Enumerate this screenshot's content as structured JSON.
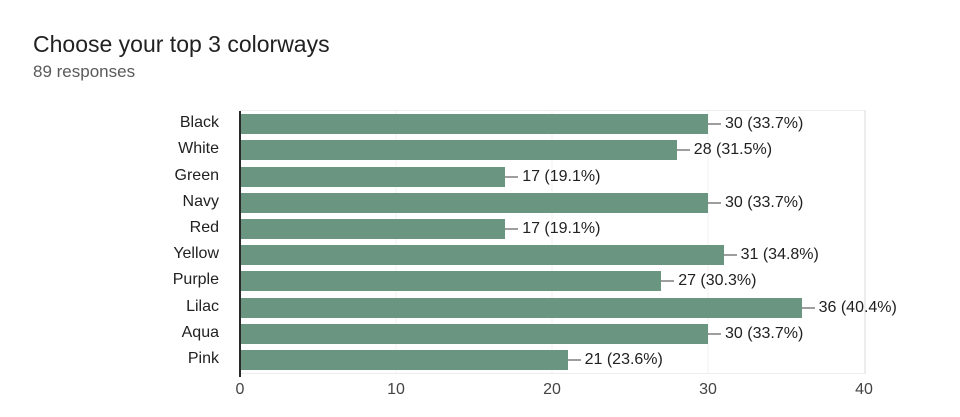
{
  "card": {
    "title": "Choose your top 3 colorways",
    "subtitle": "89 responses"
  },
  "chart_data": {
    "type": "bar",
    "orientation": "horizontal",
    "title": "Choose your top 3 colorways",
    "subtitle": "89 responses",
    "total_responses": 89,
    "categories": [
      "Black",
      "White",
      "Green",
      "Navy",
      "Red",
      "Yellow",
      "Purple",
      "Lilac",
      "Aqua",
      "Pink"
    ],
    "values": [
      30,
      28,
      17,
      30,
      17,
      31,
      27,
      36,
      30,
      21
    ],
    "value_labels": [
      "30 (33.7%)",
      "28 (31.5%)",
      "17 (19.1%)",
      "30 (33.7%)",
      "17 (19.1%)",
      "31 (34.8%)",
      "27 (30.3%)",
      "36 (40.4%)",
      "30 (33.7%)",
      "21 (23.6%)"
    ],
    "percentages": [
      33.7,
      31.5,
      19.1,
      33.7,
      19.1,
      34.8,
      30.3,
      40.4,
      33.7,
      23.6
    ],
    "xlabel": "",
    "ylabel": "",
    "xlim": [
      0,
      40
    ],
    "x_ticks": [
      "0",
      "10",
      "20",
      "30",
      "40"
    ],
    "grid": true,
    "legend": "none",
    "bar_color": "#6a9681"
  },
  "colors": {
    "background": "#ffffff",
    "bar": "#6a9681",
    "axis_line": "#2a2a2a",
    "gridline": "#f2f2f2",
    "plot_border": "#ededed",
    "connector": "#9e9e9e",
    "title_text": "#212121",
    "subtitle_text": "#5a5a5a",
    "label_text": "#212121",
    "tick_text": "#444444"
  }
}
